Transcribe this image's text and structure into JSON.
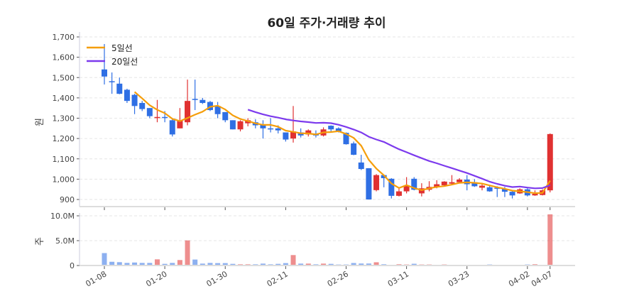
{
  "chart_data": {
    "type": "candlestick",
    "title": "60일 주가·거래량 추이",
    "price_ylabel": "원",
    "volume_ylabel": "주",
    "price_ylim": [
      880,
      1700
    ],
    "price_yticks": [
      900,
      1000,
      1100,
      1200,
      1300,
      1400,
      1500,
      1600,
      1700
    ],
    "price_ytick_labels": [
      "900",
      "1,000",
      "1,100",
      "1,200",
      "1,300",
      "1,400",
      "1,500",
      "1,600",
      "1,700"
    ],
    "volume_ylim": [
      0,
      10.5
    ],
    "volume_yticks": [
      0,
      5,
      10
    ],
    "volume_ytick_labels": [
      "0",
      "5.0M",
      "10.0M"
    ],
    "volume_unit": "M",
    "grid": true,
    "legend_placement": "top-left",
    "legend": [
      {
        "name": "5일선",
        "color": "#f59e0b",
        "window": 5
      },
      {
        "name": "20일선",
        "color": "#7c3aed",
        "window": 20
      }
    ],
    "colors": {
      "up": "#e03131",
      "down": "#2f6fe4"
    },
    "x_tick_labels": [
      {
        "index": 0,
        "label": "01-08"
      },
      {
        "index": 8,
        "label": "01-20"
      },
      {
        "index": 16,
        "label": "01-30"
      },
      {
        "index": 24,
        "label": "02-11"
      },
      {
        "index": 32,
        "label": "02-26"
      },
      {
        "index": 40,
        "label": "03-11"
      },
      {
        "index": 48,
        "label": "03-23"
      },
      {
        "index": 56,
        "label": "04-02"
      },
      {
        "index": 59,
        "label": "04-07"
      }
    ],
    "ohlc": [
      [
        1540,
        1665,
        1466,
        1505
      ],
      [
        1482,
        1525,
        1420,
        1478
      ],
      [
        1470,
        1500,
        1418,
        1420
      ],
      [
        1440,
        1445,
        1375,
        1385
      ],
      [
        1415,
        1420,
        1320,
        1360
      ],
      [
        1375,
        1385,
        1335,
        1345
      ],
      [
        1350,
        1350,
        1300,
        1310
      ],
      [
        1303,
        1390,
        1280,
        1306
      ],
      [
        1306,
        1335,
        1280,
        1303
      ],
      [
        1290,
        1300,
        1210,
        1220
      ],
      [
        1250,
        1350,
        1250,
        1290
      ],
      [
        1280,
        1490,
        1265,
        1385
      ],
      [
        1395,
        1490,
        1340,
        1390
      ],
      [
        1390,
        1400,
        1370,
        1375
      ],
      [
        1380,
        1385,
        1335,
        1340
      ],
      [
        1360,
        1380,
        1300,
        1320
      ],
      [
        1330,
        1330,
        1280,
        1290
      ],
      [
        1290,
        1290,
        1245,
        1245
      ],
      [
        1245,
        1290,
        1235,
        1285
      ],
      [
        1275,
        1300,
        1260,
        1290
      ],
      [
        1280,
        1295,
        1250,
        1265
      ],
      [
        1270,
        1290,
        1200,
        1250
      ],
      [
        1250,
        1300,
        1230,
        1245
      ],
      [
        1250,
        1265,
        1225,
        1240
      ],
      [
        1230,
        1230,
        1185,
        1195
      ],
      [
        1200,
        1360,
        1180,
        1235
      ],
      [
        1230,
        1250,
        1205,
        1215
      ],
      [
        1220,
        1245,
        1210,
        1240
      ],
      [
        1225,
        1240,
        1205,
        1215
      ],
      [
        1215,
        1255,
        1210,
        1245
      ],
      [
        1263,
        1265,
        1230,
        1245
      ],
      [
        1250,
        1255,
        1230,
        1235
      ],
      [
        1228,
        1230,
        1170,
        1172
      ],
      [
        1176,
        1185,
        1118,
        1120
      ],
      [
        1082,
        1120,
        1045,
        1050
      ],
      [
        1054,
        1054,
        900,
        900
      ],
      [
        946,
        1025,
        940,
        1020
      ],
      [
        1020,
        1022,
        960,
        1005
      ],
      [
        1002,
        1005,
        905,
        918
      ],
      [
        918,
        960,
        915,
        940
      ],
      [
        940,
        1010,
        930,
        970
      ],
      [
        1002,
        1010,
        945,
        948
      ],
      [
        930,
        980,
        915,
        955
      ],
      [
        948,
        990,
        940,
        962
      ],
      [
        960,
        995,
        955,
        975
      ],
      [
        970,
        990,
        968,
        988
      ],
      [
        978,
        1020,
        970,
        985
      ],
      [
        985,
        1005,
        980,
        998
      ],
      [
        998,
        1020,
        945,
        975
      ],
      [
        985,
        1000,
        962,
        965
      ],
      [
        958,
        975,
        945,
        968
      ],
      [
        960,
        970,
        938,
        940
      ],
      [
        958,
        965,
        912,
        953
      ],
      [
        952,
        962,
        912,
        938
      ],
      [
        938,
        942,
        905,
        920
      ],
      [
        930,
        955,
        928,
        950
      ],
      [
        950,
        955,
        915,
        920
      ],
      [
        920,
        945,
        918,
        928
      ],
      [
        922,
        950,
        920,
        945
      ],
      [
        945,
        1225,
        935,
        1222
      ]
    ],
    "volume": [
      2.5,
      0.75,
      0.67,
      0.52,
      0.6,
      0.52,
      0.52,
      1.24,
      0.33,
      0.52,
      1.1,
      5.05,
      1.2,
      0.38,
      0.52,
      0.48,
      0.48,
      0.33,
      0.24,
      0.24,
      0.24,
      0.38,
      0.24,
      0.33,
      0.48,
      2.1,
      0.38,
      0.38,
      0.24,
      0.38,
      0.33,
      0.2,
      0.2,
      0.5,
      0.4,
      0.4,
      0.65,
      0.25,
      0.1,
      0.25,
      0.2,
      0.35,
      0.2,
      0.2,
      0.1,
      0.2,
      0.1,
      0.1,
      0.1,
      0.1,
      0.1,
      0.2,
      0.05,
      0.1,
      0.1,
      0.1,
      0.2,
      0.25,
      0.05,
      10.3
    ]
  }
}
